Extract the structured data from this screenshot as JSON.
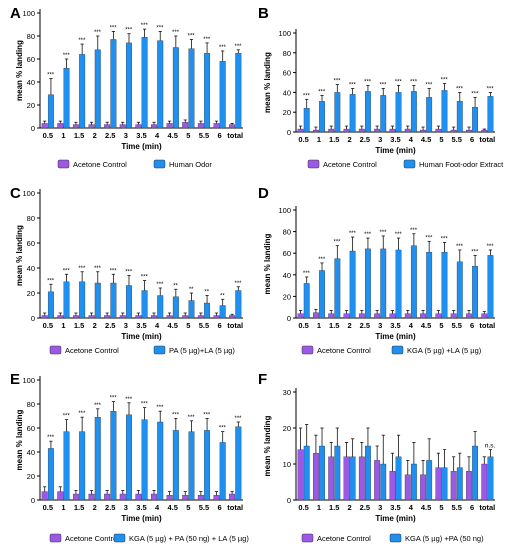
{
  "colors": {
    "control": "#9b59e6",
    "treatment": "#1f8ff0",
    "errorbar": "#111111"
  },
  "chart_data": [
    {
      "panel": "A",
      "type": "bar",
      "ylim": [
        0,
        100
      ],
      "yticks": [
        0,
        20,
        40,
        60,
        80,
        100
      ],
      "ylabel": "mean % landing",
      "xlabel": "Time (min)",
      "categories": [
        "0.5",
        "1",
        "1.5",
        "2",
        "2.5",
        "3",
        "3.5",
        "4",
        "4.5",
        "5",
        "5.5",
        "6",
        "total"
      ],
      "series": [
        {
          "name": "Acetone Control",
          "values": [
            4,
            4,
            3,
            3,
            3,
            3,
            3,
            3,
            4,
            5,
            4,
            4,
            3
          ],
          "errors": [
            2,
            2,
            2,
            2,
            2,
            2,
            2,
            2,
            2,
            2,
            2,
            2,
            1
          ]
        },
        {
          "name": "Human Odor",
          "values": [
            29,
            52,
            64,
            68,
            77,
            74,
            79,
            76,
            70,
            69,
            65,
            58,
            65
          ],
          "errors": [
            14,
            8,
            9,
            12,
            7,
            8,
            7,
            8,
            10,
            8,
            9,
            9,
            3
          ]
        }
      ],
      "significance": [
        "***",
        "***",
        "***",
        "***",
        "***",
        "***",
        "***",
        "***",
        "***",
        "***",
        "***",
        "***",
        "***"
      ]
    },
    {
      "panel": "B",
      "type": "bar",
      "ylim": [
        0,
        100
      ],
      "yticks": [
        0,
        20,
        40,
        60,
        80,
        100
      ],
      "ylabel": "mean % landing",
      "xlabel": "Time (min)",
      "categories": [
        "0.5",
        "1",
        "1.5",
        "2",
        "2.5",
        "3",
        "3.5",
        "4",
        "4.5",
        "5",
        "5.5",
        "6",
        "total"
      ],
      "series": [
        {
          "name": "Acetone Control",
          "values": [
            3,
            2,
            3,
            3,
            3,
            3,
            3,
            3,
            2,
            3,
            2,
            2,
            2
          ],
          "errors": [
            3,
            3,
            3,
            3,
            3,
            3,
            3,
            3,
            3,
            3,
            3,
            3,
            1
          ]
        },
        {
          "name": "Human Foot-odor Extract",
          "values": [
            24,
            31,
            40,
            38,
            41,
            37,
            40,
            41,
            35,
            42,
            31,
            25,
            36
          ],
          "errors": [
            9,
            6,
            8,
            6,
            6,
            7,
            7,
            6,
            9,
            7,
            9,
            10,
            4
          ]
        }
      ],
      "significance": [
        "***",
        "***",
        "***",
        "***",
        "***",
        "***",
        "***",
        "***",
        "***",
        "***",
        "***",
        "***",
        "***"
      ]
    },
    {
      "panel": "C",
      "type": "bar",
      "ylim": [
        0,
        100
      ],
      "yticks": [
        0,
        20,
        40,
        60,
        80,
        100
      ],
      "ylabel": "mean % landing",
      "xlabel": "Time (min)",
      "categories": [
        "0.5",
        "1",
        "1.5",
        "2",
        "2.5",
        "3",
        "3.5",
        "4",
        "4.5",
        "5",
        "5.5",
        "6",
        "total"
      ],
      "series": [
        {
          "name": "Acetone Control",
          "values": [
            2,
            2,
            2,
            2,
            2,
            2,
            2,
            2,
            2,
            2,
            2,
            2,
            2
          ],
          "errors": [
            2,
            2,
            2,
            2,
            2,
            2,
            2,
            2,
            2,
            2,
            2,
            2,
            1
          ]
        },
        {
          "name": "PA (5 µg)+LA (5 µg)",
          "values": [
            21,
            29,
            29,
            28,
            28,
            26,
            22,
            18,
            17,
            14,
            12,
            10,
            22
          ],
          "errors": [
            6,
            6,
            8,
            9,
            7,
            8,
            8,
            6,
            6,
            6,
            6,
            5,
            3
          ]
        }
      ],
      "significance": [
        "***",
        "***",
        "***",
        "***",
        "***",
        "***",
        "***",
        "***",
        "**",
        "**",
        "**",
        "**",
        "***"
      ]
    },
    {
      "panel": "D",
      "type": "bar",
      "ylim": [
        0,
        100
      ],
      "yticks": [
        0,
        20,
        40,
        60,
        80,
        100
      ],
      "ylabel": "mean % landing",
      "xlabel": "Time (min)",
      "categories": [
        "0.5",
        "1",
        "1.5",
        "2",
        "2.5",
        "3",
        "3.5",
        "4",
        "4.5",
        "5",
        "5.5",
        "6",
        "total"
      ],
      "series": [
        {
          "name": "Acetone Control",
          "values": [
            4,
            5,
            4,
            4,
            4,
            4,
            4,
            4,
            4,
            4,
            4,
            4,
            4
          ],
          "errors": [
            3,
            3,
            3,
            3,
            3,
            3,
            3,
            3,
            3,
            3,
            3,
            3,
            2
          ]
        },
        {
          "name": "KGA (5 µg) +LA (5 µg)",
          "values": [
            32,
            44,
            55,
            62,
            64,
            64,
            63,
            67,
            61,
            61,
            52,
            48,
            58
          ],
          "errors": [
            6,
            7,
            12,
            13,
            10,
            12,
            11,
            11,
            10,
            9,
            11,
            10,
            5
          ]
        }
      ],
      "significance": [
        "***",
        "***",
        "***",
        "***",
        "***",
        "***",
        "***",
        "***",
        "***",
        "***",
        "***",
        "***",
        "***"
      ]
    },
    {
      "panel": "E",
      "type": "bar",
      "ylim": [
        0,
        100
      ],
      "yticks": [
        0,
        20,
        40,
        60,
        80,
        100
      ],
      "ylabel": "mean % landing",
      "xlabel": "Time (min)",
      "categories": [
        "0.5",
        "1",
        "1.5",
        "2",
        "2.5",
        "3",
        "3.5",
        "4",
        "4.5",
        "5",
        "5.5",
        "6",
        "total"
      ],
      "series": [
        {
          "name": "Acetone Control",
          "values": [
            7,
            7,
            5,
            5,
            5,
            5,
            5,
            5,
            4,
            4,
            4,
            4,
            5
          ],
          "errors": [
            4,
            4,
            3,
            3,
            3,
            3,
            3,
            3,
            3,
            3,
            3,
            3,
            2
          ]
        },
        {
          "name": "KGA (5 µg) + PA (50 ng) + LA (5 µg)",
          "values": [
            43,
            57,
            57,
            69,
            74,
            71,
            67,
            65,
            58,
            57,
            58,
            48,
            61
          ],
          "errors": [
            6,
            10,
            12,
            7,
            8,
            10,
            10,
            9,
            10,
            9,
            10,
            9,
            4
          ]
        }
      ],
      "significance": [
        "***",
        "***",
        "***",
        "***",
        "***",
        "***",
        "***",
        "***",
        "***",
        "***",
        "***",
        "***",
        "***"
      ]
    },
    {
      "panel": "F",
      "type": "bar",
      "ylim": [
        0,
        30
      ],
      "yticks": [
        0,
        10,
        20,
        30
      ],
      "ylabel": "mean % landing",
      "xlabel": "Time (min)",
      "categories": [
        "0.5",
        "1",
        "1.5",
        "2",
        "2.5",
        "3",
        "3.5",
        "4",
        "4.5",
        "5",
        "5.5",
        "6",
        "total"
      ],
      "series": [
        {
          "name": "Acetone Control",
          "values": [
            14,
            13,
            12,
            12,
            12,
            11,
            8,
            7,
            7,
            9,
            8,
            8,
            10
          ],
          "errors": [
            6,
            5,
            4,
            4,
            4,
            4,
            5,
            4,
            4,
            4,
            4,
            4,
            2
          ]
        },
        {
          "name": "KGA (5 µg) +PA (50 ng)",
          "values": [
            15,
            15,
            15,
            12,
            15,
            10,
            12,
            10,
            11,
            9,
            9,
            15,
            12
          ],
          "errors": [
            6,
            5,
            5,
            5,
            5,
            8,
            6,
            6,
            6,
            5,
            4,
            4,
            2
          ]
        }
      ],
      "significance": [
        "",
        "",
        "",
        "",
        "",
        "",
        "",
        "",
        "",
        "",
        "",
        "",
        "n.s."
      ]
    }
  ]
}
